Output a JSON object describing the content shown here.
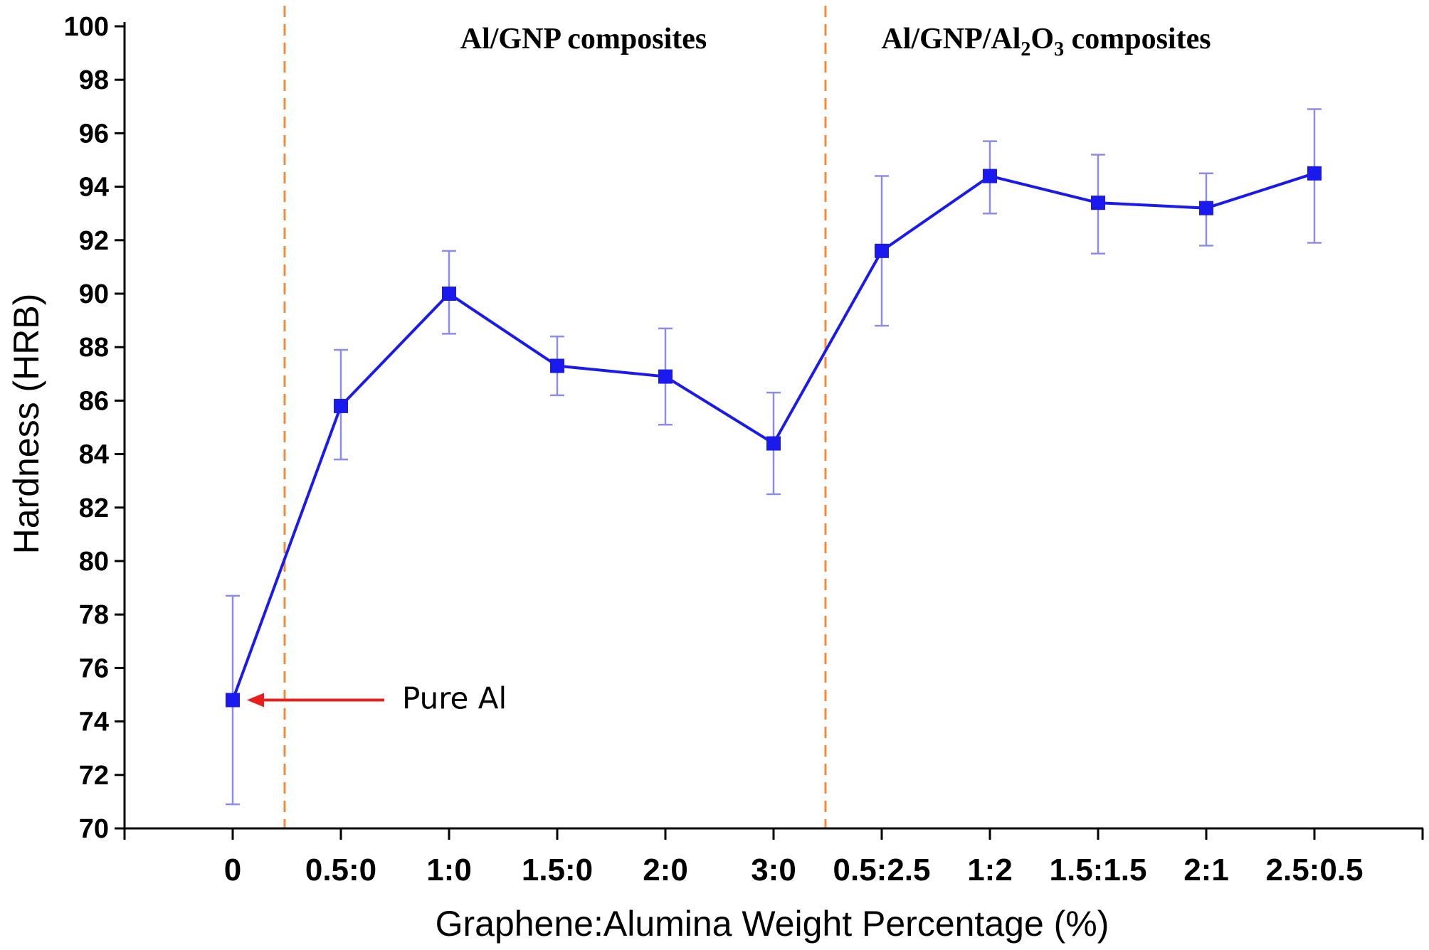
{
  "chart_data": {
    "type": "line",
    "xlabel": "Graphene:Alumina Weight Percentage (%)",
    "ylabel": "Hardness (HRB)",
    "ylim": [
      70,
      100
    ],
    "yticks": [
      70,
      72,
      74,
      76,
      78,
      80,
      82,
      84,
      86,
      88,
      90,
      92,
      94,
      96,
      98,
      100
    ],
    "categories": [
      "0",
      "0.5:0",
      "1:0",
      "1.5:0",
      "2:0",
      "3:0",
      "0.5:2.5",
      "1:2",
      "1.5:1.5",
      "2:1",
      "2.5:0.5"
    ],
    "values": [
      74.8,
      85.8,
      90.0,
      87.3,
      86.9,
      84.4,
      91.6,
      94.4,
      93.4,
      93.2,
      94.5
    ],
    "error_low": [
      70.9,
      83.8,
      88.5,
      86.2,
      85.1,
      82.5,
      88.8,
      93.0,
      91.5,
      91.8,
      91.9
    ],
    "error_high": [
      78.7,
      87.9,
      91.6,
      88.4,
      88.7,
      86.3,
      94.4,
      95.7,
      95.2,
      94.5,
      96.9
    ],
    "series_color": "#1a1aee",
    "error_color": "#8c8cf0",
    "divider_color": "#f08a3c",
    "dividers_after_category_index": [
      0,
      5
    ],
    "regions": [
      {
        "label": "Al/GNP composites"
      },
      {
        "label_parts": [
          "Al/GNP/Al",
          "2",
          "O",
          "3",
          " composites"
        ]
      }
    ],
    "annotation": {
      "text": "Pure Al",
      "arrow_color": "#e8201c",
      "points_to": "0"
    },
    "grid": false
  }
}
